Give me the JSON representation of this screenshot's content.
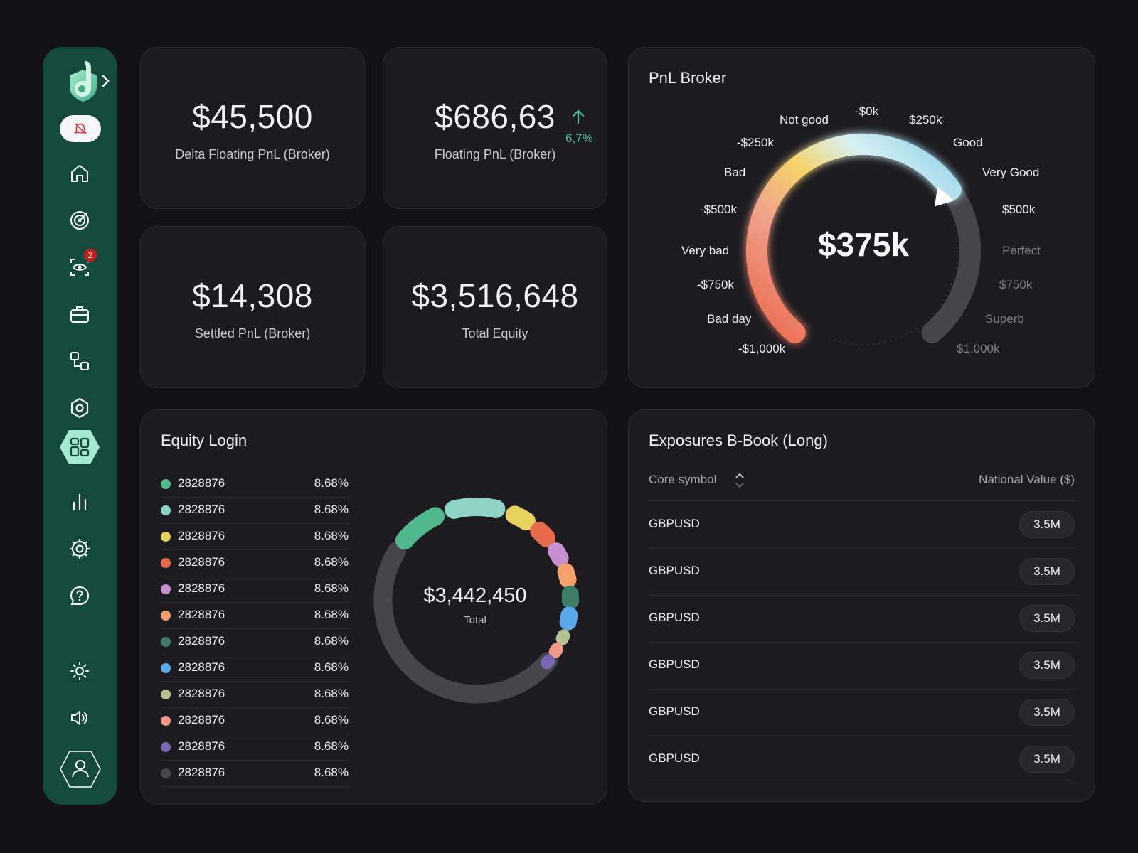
{
  "sidebar": {
    "badge_count": "2",
    "items": [
      {
        "name": "home-icon"
      },
      {
        "name": "radar-icon"
      },
      {
        "name": "eye-scan-icon"
      },
      {
        "name": "briefcase-icon"
      },
      {
        "name": "workflow-icon"
      },
      {
        "name": "hexagon-icon"
      },
      {
        "name": "dashboard-icon",
        "active": true
      },
      {
        "name": "bar-chart-icon"
      },
      {
        "name": "settings-icon"
      },
      {
        "name": "help-icon"
      },
      {
        "name": "sun-icon"
      },
      {
        "name": "speaker-icon"
      },
      {
        "name": "user-icon"
      }
    ]
  },
  "stats": {
    "delta_floating": {
      "value": "$45,500",
      "label": "Delta Floating PnL (Broker)"
    },
    "floating": {
      "value": "$686,63",
      "label": "Floating PnL (Broker)",
      "trend": "6,7%"
    },
    "settled": {
      "value": "$14,308",
      "label": "Settled PnL (Broker)"
    },
    "total_equity": {
      "value": "$3,516,648",
      "label": "Total Equity"
    }
  },
  "pnl_broker": {
    "title": "PnL Broker",
    "value": "$375k",
    "labels": {
      "neg1000": "-$1,000k",
      "bad_day": "Bad day",
      "neg750": "-$750k",
      "very_bad": "Very bad",
      "neg500": "-$500k",
      "bad": "Bad",
      "neg250": "-$250k",
      "not_good": "Not good",
      "zero": "-$0k",
      "pos250": "$250k",
      "good": "Good",
      "very_good": "Very Good",
      "pos500": "$500k",
      "perfect": "Perfect",
      "pos750": "$750k",
      "superb": "Superb",
      "pos1000": "$1,000k"
    },
    "colors": {
      "very_bad": "#e9694c",
      "bad": "#f0a08a",
      "not_good": "#f4d46a",
      "good": "#bfe6ef",
      "very_good": "#8fd3e6",
      "track": "#45454b"
    }
  },
  "equity_login": {
    "title": "Equity Login",
    "total": "$3,442,450",
    "total_label": "Total",
    "rows": [
      {
        "name": "2828876",
        "pct": "8.68%",
        "color": "#4fb88c"
      },
      {
        "name": "2828876",
        "pct": "8.68%",
        "color": "#8fd3c8"
      },
      {
        "name": "2828876",
        "pct": "8.68%",
        "color": "#e8d25e"
      },
      {
        "name": "2828876",
        "pct": "8.68%",
        "color": "#e9694c"
      },
      {
        "name": "2828876",
        "pct": "8.68%",
        "color": "#c78fcf"
      },
      {
        "name": "2828876",
        "pct": "8.68%",
        "color": "#f5a26a"
      },
      {
        "name": "2828876",
        "pct": "8.68%",
        "color": "#3e7d68"
      },
      {
        "name": "2828876",
        "pct": "8.68%",
        "color": "#5aa9ea"
      },
      {
        "name": "2828876",
        "pct": "8.68%",
        "color": "#b8c48f"
      },
      {
        "name": "2828876",
        "pct": "8.68%",
        "color": "#f29a8a"
      },
      {
        "name": "2828876",
        "pct": "8.68%",
        "color": "#7a66b5"
      },
      {
        "name": "2828876",
        "pct": "8.68%",
        "color": "#45454b"
      }
    ]
  },
  "exposures": {
    "title": "Exposures B-Book (Long)",
    "col_symbol": "Core symbol",
    "col_value": "National Value ($)",
    "rows": [
      {
        "symbol": "GBPUSD",
        "value": "3.5M"
      },
      {
        "symbol": "GBPUSD",
        "value": "3.5M"
      },
      {
        "symbol": "GBPUSD",
        "value": "3.5M"
      },
      {
        "symbol": "GBPUSD",
        "value": "3.5M"
      },
      {
        "symbol": "GBPUSD",
        "value": "3.5M"
      },
      {
        "symbol": "GBPUSD",
        "value": "3.5M"
      }
    ]
  }
}
